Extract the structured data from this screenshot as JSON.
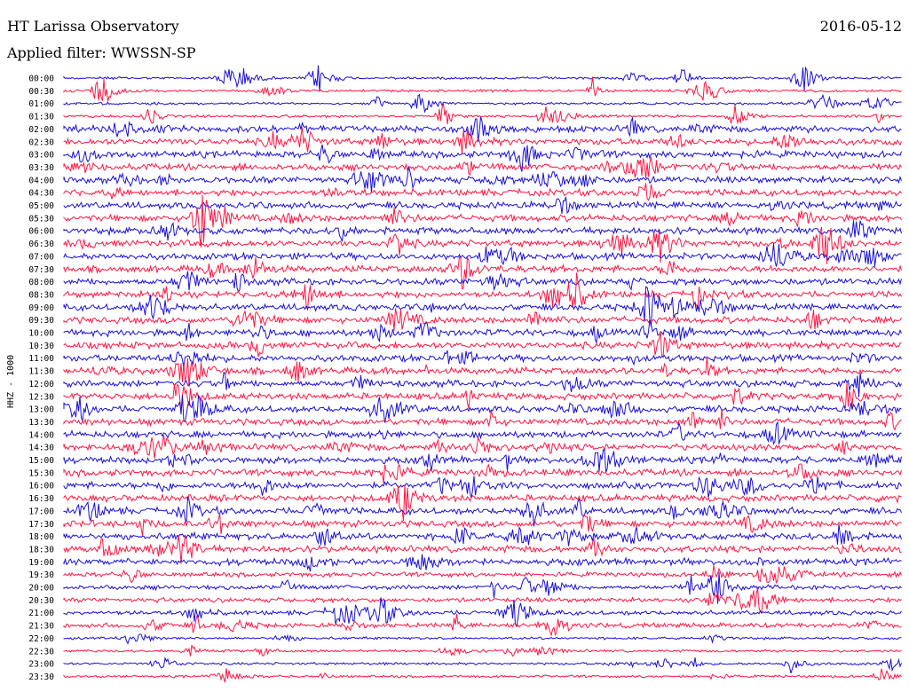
{
  "header": {
    "station": "HT Larissa Observatory",
    "date": "2016-05-12",
    "filter_label": "Applied filter: WWSSN-SP"
  },
  "chart_data": {
    "type": "line",
    "title": "HT Larissa Observatory",
    "ylabel": "HHZ - 1000",
    "trace_colors": [
      "#1a10d8",
      "#ff1744"
    ],
    "row_labels": [
      "00:00",
      "00:30",
      "01:00",
      "01:30",
      "02:00",
      "02:30",
      "03:00",
      "03:30",
      "04:00",
      "04:30",
      "05:00",
      "05:30",
      "06:00",
      "06:30",
      "07:00",
      "07:30",
      "08:00",
      "08:30",
      "09:00",
      "09:30",
      "10:00",
      "10:30",
      "11:00",
      "11:30",
      "12:00",
      "12:30",
      "13:00",
      "13:30",
      "14:00",
      "14:30",
      "15:00",
      "15:30",
      "16:00",
      "16:30",
      "17:00",
      "17:30",
      "18:00",
      "18:30",
      "19:00",
      "19:30",
      "20:00",
      "20:30",
      "21:00",
      "21:30",
      "22:00",
      "22:30",
      "23:00",
      "23:30"
    ],
    "x_range_minutes": [
      0,
      30
    ],
    "grid": false,
    "legend": "none"
  }
}
